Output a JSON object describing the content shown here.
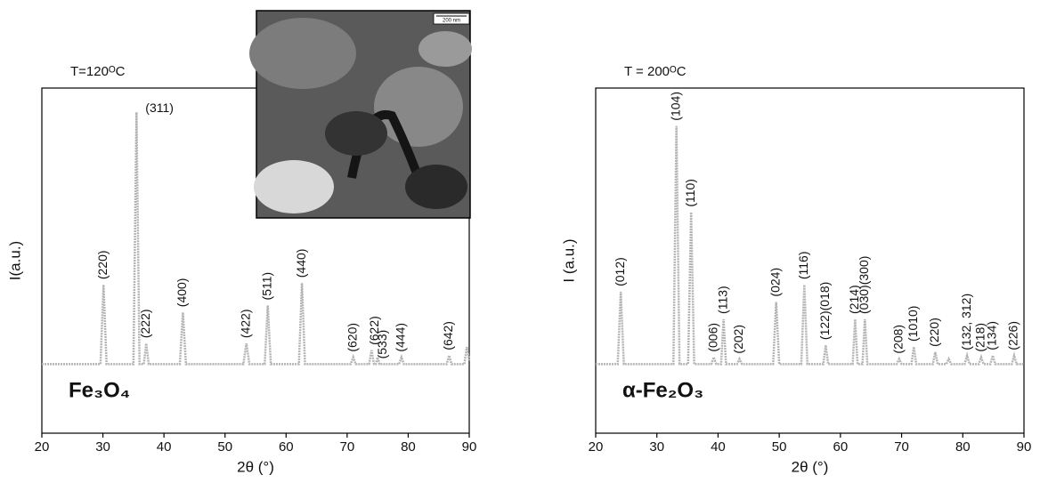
{
  "chart_data": [
    {
      "type": "line",
      "title": "T=120ᴼC",
      "phase_label": "Fe₃O₄",
      "image_label": "200 nm",
      "x_label": "2θ (°)",
      "y_label": "I(a.u.)",
      "xlim": [
        20,
        90
      ],
      "xticks": [
        20,
        30,
        40,
        50,
        60,
        70,
        80,
        90
      ],
      "ylim": [
        0,
        100
      ],
      "color": "#b4b4b4",
      "x": [
        20,
        29.6,
        30.1,
        30.6,
        35.0,
        35.5,
        36.0,
        36.7,
        37.1,
        37.5,
        42.6,
        43.1,
        43.6,
        53.0,
        53.5,
        54.0,
        56.5,
        57.0,
        57.5,
        62.1,
        62.6,
        63.1,
        70.6,
        71.0,
        71.4,
        73.6,
        74.0,
        74.4,
        74.7,
        75.0,
        75.3,
        78.5,
        78.9,
        79.3,
        86.3,
        86.7,
        87.1,
        89.2,
        89.6,
        90
      ],
      "values": [
        20,
        20,
        43,
        20,
        20,
        93,
        20,
        20,
        26,
        20,
        20,
        35,
        20,
        20,
        26,
        20,
        20,
        37,
        20,
        20,
        43.5,
        20,
        20,
        22,
        20,
        20,
        24,
        20,
        20,
        22,
        20,
        20,
        22,
        20,
        20,
        22.5,
        20,
        20,
        25,
        21
      ],
      "annotations": [
        {
          "text": "(220)",
          "x": 30.1
        },
        {
          "text": "(311)",
          "x": 35.5
        },
        {
          "text": "(222)",
          "x": 37.1
        },
        {
          "text": "(400)",
          "x": 43.1
        },
        {
          "text": "(422)",
          "x": 53.5
        },
        {
          "text": "(511)",
          "x": 57.0
        },
        {
          "text": "(440)",
          "x": 62.6
        },
        {
          "text": "(620)",
          "x": 71.0
        },
        {
          "text": "(622)",
          "x": 74.6
        },
        {
          "text": "(533)",
          "x": 75.9
        },
        {
          "text": "(444)",
          "x": 78.9
        },
        {
          "text": "(642)",
          "x": 86.7
        }
      ]
    },
    {
      "type": "line",
      "title": "T = 200ᴼC",
      "phase_label": "α-Fe₂O₃",
      "x_label": "2θ (°)",
      "y_label": "I (a.u.)",
      "xlim": [
        20,
        90
      ],
      "xticks": [
        20,
        30,
        40,
        50,
        60,
        70,
        80,
        90
      ],
      "ylim": [
        0,
        100
      ],
      "color": "#b4b4b4",
      "x": [
        20,
        23.6,
        24.1,
        24.6,
        32.7,
        33.2,
        33.7,
        35.1,
        35.6,
        36.1,
        38.9,
        39.3,
        39.7,
        40.5,
        40.9,
        41.3,
        43.1,
        43.5,
        43.9,
        49.0,
        49.5,
        50.0,
        53.6,
        54.1,
        54.6,
        57.2,
        57.6,
        58.0,
        62.0,
        62.4,
        62.8,
        63.6,
        64.0,
        64.4,
        69.2,
        69.6,
        70.0,
        71.6,
        72.0,
        72.4,
        75.1,
        75.5,
        75.9,
        77.3,
        77.7,
        78.1,
        80.3,
        80.7,
        81.1,
        82.6,
        83.0,
        83.4,
        84.5,
        84.9,
        85.3,
        88.0,
        88.4,
        88.8,
        90
      ],
      "values": [
        20,
        20,
        41,
        20,
        20,
        89,
        20,
        20,
        64,
        20,
        20,
        22,
        20,
        20,
        33,
        20,
        20,
        21.5,
        20,
        20,
        38,
        20,
        20,
        43,
        20,
        20,
        25.5,
        20,
        20,
        33,
        20,
        20,
        33,
        20,
        20,
        21.5,
        20,
        20,
        25,
        20,
        20,
        23.5,
        20,
        20,
        21.5,
        20,
        20,
        22.5,
        20,
        20,
        22,
        20,
        20,
        22.5,
        20,
        20,
        22.5,
        20,
        20
      ],
      "annotations": [
        {
          "text": "(012)",
          "x": 24.1
        },
        {
          "text": "(104)",
          "x": 33.2
        },
        {
          "text": "(110)",
          "x": 35.6
        },
        {
          "text": "(006)",
          "x": 39.3
        },
        {
          "text": "(113)",
          "x": 40.9
        },
        {
          "text": "(202)",
          "x": 43.5
        },
        {
          "text": "(024)",
          "x": 49.5
        },
        {
          "text": "(116)",
          "x": 54.1
        },
        {
          "text": "(122)(018)",
          "x": 57.6
        },
        {
          "text": "(214)",
          "x": 62.4
        },
        {
          "text": "(030)(300)",
          "x": 64.0
        },
        {
          "text": "(208)",
          "x": 69.6
        },
        {
          "text": "(1010)",
          "x": 72.0
        },
        {
          "text": "(220)",
          "x": 75.5
        },
        {
          "text": "(132, 312)",
          "x": 80.7
        },
        {
          "text": "(218)",
          "x": 83.0
        },
        {
          "text": "(134)",
          "x": 84.9
        },
        {
          "text": "(226)",
          "x": 88.4
        }
      ]
    }
  ]
}
